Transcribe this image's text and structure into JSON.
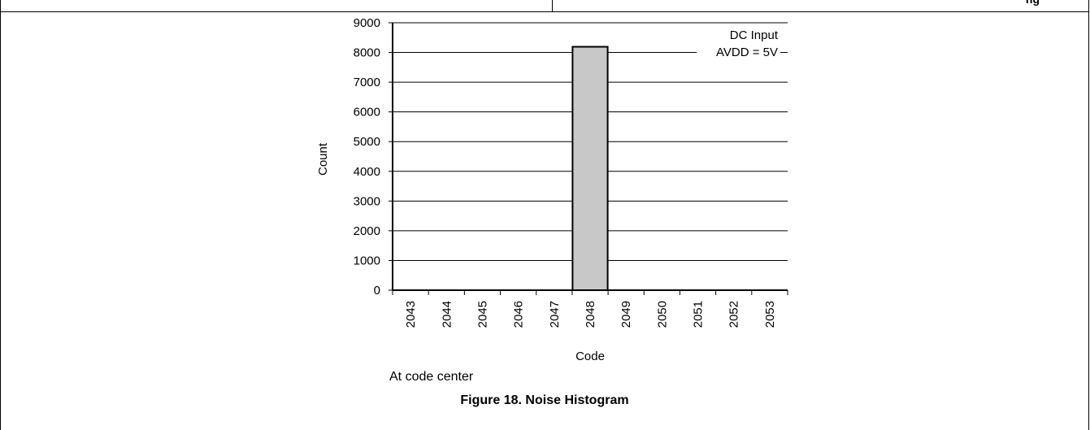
{
  "header": {
    "cut_text": "ng"
  },
  "figure": {
    "note": "At code center",
    "caption": "Figure 18. Noise Histogram"
  },
  "chart_data": {
    "type": "bar",
    "categories": [
      "2043",
      "2044",
      "2045",
      "2046",
      "2047",
      "2048",
      "2049",
      "2050",
      "2051",
      "2052",
      "2053"
    ],
    "values": [
      0,
      0,
      0,
      0,
      0,
      8192,
      0,
      0,
      0,
      0,
      0
    ],
    "xlabel": "Code",
    "ylabel": "Count",
    "ylim": [
      0,
      9000
    ],
    "yticks": [
      0,
      1000,
      2000,
      3000,
      4000,
      5000,
      6000,
      7000,
      8000,
      9000
    ],
    "grid": true,
    "annotation": [
      "DC Input",
      "AVDD = 5V"
    ],
    "annotation_position": "top-right",
    "bar_color": "#c8c8c8"
  }
}
